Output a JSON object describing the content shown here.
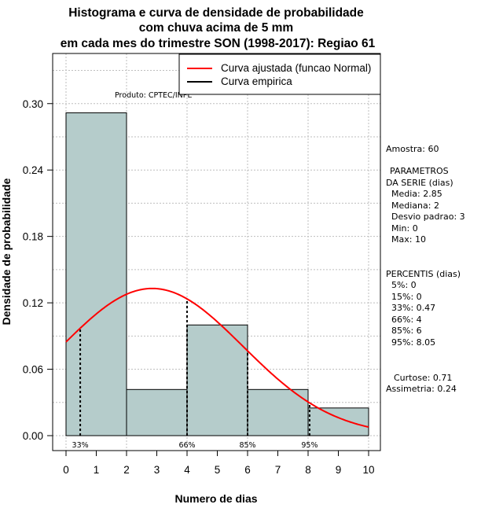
{
  "chart_data": {
    "type": "bar",
    "title_lines": [
      "Histograma e curva de densidade de probabilidade",
      "com chuva acima de 5 mm",
      "em cada mes do trimestre SON (1998-2017): Regiao 61"
    ],
    "xlabel": "Numero de dias",
    "ylabel": "Densidade de probabilidade",
    "xlim": [
      0,
      10
    ],
    "ylim": [
      0,
      0.33
    ],
    "x_ticks": [
      "0",
      "1",
      "2",
      "3",
      "4",
      "5",
      "6",
      "7",
      "8",
      "9",
      "10"
    ],
    "y_ticks": [
      "0.00",
      "0.06",
      "0.12",
      "0.18",
      "0.24",
      "0.30"
    ],
    "bins": [
      {
        "x0": 0,
        "x1": 2,
        "density": 0.2917
      },
      {
        "x0": 2,
        "x1": 4,
        "density": 0.0417
      },
      {
        "x0": 4,
        "x1": 6,
        "density": 0.1
      },
      {
        "x0": 6,
        "x1": 8,
        "density": 0.0417
      },
      {
        "x0": 8,
        "x1": 10,
        "density": 0.025
      }
    ],
    "normal_fit": {
      "mean": 2.85,
      "sd": 3
    },
    "percentile_markers": [
      {
        "label": "33%",
        "x": 0.47
      },
      {
        "label": "66%",
        "x": 4
      },
      {
        "label": "85%",
        "x": 6
      },
      {
        "label": "95%",
        "x": 8.05
      }
    ],
    "legend": {
      "items": [
        {
          "label": "Curva ajustada (funcao Normal)",
          "color": "#ff0000"
        },
        {
          "label": "Curva empirica",
          "color": "#000000"
        }
      ]
    },
    "product_label": "Produto: CPTEC/INPE",
    "colors": {
      "bar_fill": "#b5cccb",
      "curve": "#ff0000",
      "grid": "#bebebe"
    }
  },
  "stats": {
    "sample": "Amostra: 60",
    "params_header_1": "PARAMETROS",
    "params_header_2": "DA SERIE (dias)",
    "media": "Media: 2.85",
    "mediana": "Mediana: 2",
    "desvio": "Desvio padrao: 3",
    "min": "Min: 0",
    "max": "Max: 10",
    "perc_header": "PERCENTIS (dias)",
    "p5": "5%: 0",
    "p15": "15%: 0",
    "p33": "33%: 0.47",
    "p66": "66%: 4",
    "p85": "85%: 6",
    "p95": "95%: 8.05",
    "curtose": "Curtose: 0.71",
    "assimetria": "Assimetria: 0.24"
  }
}
